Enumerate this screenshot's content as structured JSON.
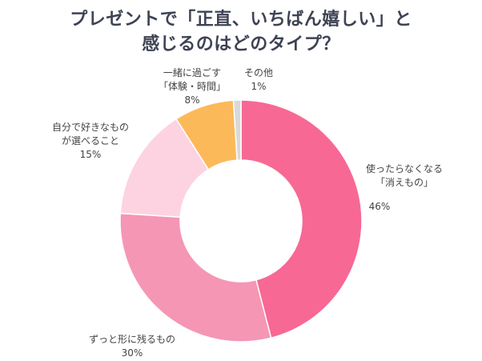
{
  "chart_data": {
    "type": "pie",
    "donut": true,
    "title_lines": [
      "プレゼントで「正直、いちばん嬉しい」と",
      "感じるのはどのタイプ？"
    ],
    "slices": [
      {
        "label_lines": [
          "使ったらなくなる",
          "「消えもの」"
        ],
        "value": 46,
        "value_label": "46%",
        "color": "#F76895"
      },
      {
        "label_lines": [
          "ずっと形に残るもの"
        ],
        "value": 30,
        "value_label": "30%",
        "color": "#F596B5"
      },
      {
        "label_lines": [
          "自分で好きなもの",
          "が選べること"
        ],
        "value": 15,
        "value_label": "15%",
        "color": "#FDD3E1"
      },
      {
        "label_lines": [
          "一緒に過ごす",
          "「体験・時間」"
        ],
        "value": 8,
        "value_label": "8%",
        "color": "#FCB95A"
      },
      {
        "label_lines": [
          "その他"
        ],
        "value": 1,
        "value_label": "1%",
        "color": "#D9D9D9"
      }
    ],
    "start_angle": "top",
    "direction": "clockwise"
  }
}
